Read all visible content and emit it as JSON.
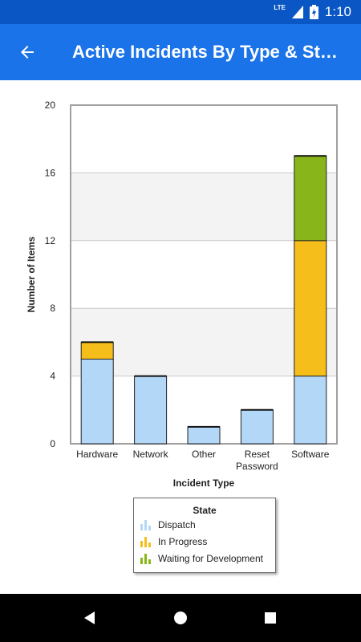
{
  "status_bar": {
    "time": "1:10",
    "network_label": "LTE",
    "icons": [
      "signal-icon",
      "battery-charging-icon"
    ]
  },
  "app_bar": {
    "back_icon": "arrow-left-icon",
    "title": "Active Incidents By Type & St…"
  },
  "chart_data": {
    "type": "bar",
    "stacked": true,
    "title": "",
    "xlabel": "Incident Type",
    "ylabel": "Number of Items",
    "ylim": [
      0,
      20
    ],
    "y_ticks": [
      0,
      4,
      8,
      12,
      16,
      20
    ],
    "grid": true,
    "legend_title": "State",
    "legend_position": "bottom",
    "categories": [
      "Hardware",
      "Network",
      "Other",
      "Reset Password",
      "Software"
    ],
    "category_labels": [
      [
        "Hardware"
      ],
      [
        "Network"
      ],
      [
        "Other"
      ],
      [
        "Reset",
        "Password"
      ],
      [
        "Software"
      ]
    ],
    "series": [
      {
        "name": "Dispatch",
        "color": "#b3d7f7",
        "values": [
          5,
          4,
          1,
          2,
          4
        ]
      },
      {
        "name": "In Progress",
        "color": "#f5be1a",
        "values": [
          1,
          0,
          0,
          0,
          8
        ]
      },
      {
        "name": "Waiting for Development",
        "color": "#88b61a",
        "values": [
          0,
          0,
          0,
          0,
          5
        ]
      }
    ]
  },
  "nav_bar": {
    "icons": [
      "back-triangle-icon",
      "home-circle-icon",
      "recents-square-icon"
    ]
  }
}
